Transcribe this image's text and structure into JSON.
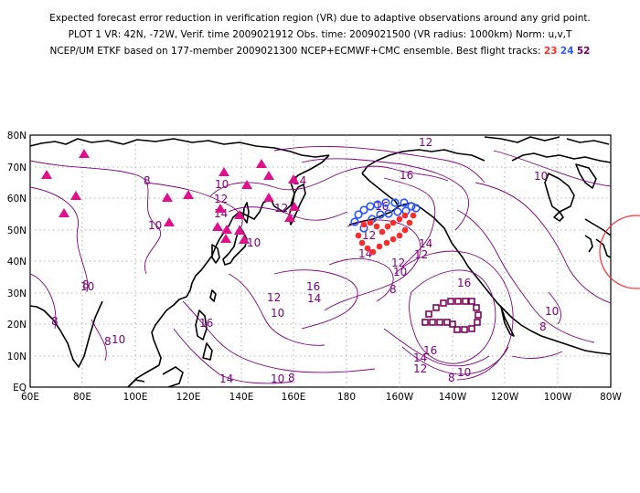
{
  "header": {
    "line1": "Expected forecast error reduction in verification region (VR) due to adaptive observations around any grid point.",
    "line2": "PLOT 1  VR: 42N, -72W,  Verif. time 2009021912  Obs. time: 2009021500  (VR radius: 1000km)  Norm: u,v,T",
    "line3_prefix": "NCEP/UM ETKF based on 177-member 2009021300 NCEP+ECMWF+CMC ensemble.  Best flight tracks:",
    "track_labels": [
      "23",
      "24",
      "52"
    ]
  },
  "axes": {
    "lat_labels": [
      "80N",
      "70N",
      "60N",
      "50N",
      "40N",
      "30N",
      "20N",
      "10N",
      "EQ"
    ],
    "lon_labels": [
      "60E",
      "80E",
      "100E",
      "120E",
      "140E",
      "160E",
      "180",
      "160W",
      "140W",
      "120W",
      "100W",
      "80W"
    ]
  },
  "contour_labels": [
    {
      "text": "12"
    },
    {
      "text": "16"
    },
    {
      "text": "10"
    },
    {
      "text": "8"
    },
    {
      "text": "10"
    },
    {
      "text": "12"
    },
    {
      "text": "14"
    },
    {
      "text": "10"
    },
    {
      "text": "8"
    },
    {
      "text": "10"
    },
    {
      "text": "8"
    },
    {
      "text": "16"
    },
    {
      "text": "12"
    },
    {
      "text": "10"
    },
    {
      "text": "16"
    },
    {
      "text": "14"
    },
    {
      "text": "12"
    },
    {
      "text": "14"
    },
    {
      "text": "12"
    },
    {
      "text": "10"
    },
    {
      "text": "16"
    },
    {
      "text": "8"
    },
    {
      "text": "16"
    },
    {
      "text": "14"
    },
    {
      "text": "12"
    },
    {
      "text": "10"
    },
    {
      "text": "14"
    },
    {
      "text": "10"
    },
    {
      "text": "8"
    },
    {
      "text": "8"
    },
    {
      "text": "10"
    },
    {
      "text": "12"
    },
    {
      "text": "14"
    },
    {
      "text": "8"
    },
    {
      "text": "10"
    },
    {
      "text": "8"
    },
    {
      "text": "16"
    },
    {
      "text": "10"
    },
    {
      "text": "12"
    },
    {
      "text": "14"
    }
  ],
  "colors": {
    "contour": "#800080",
    "raob": "#e0108c",
    "track23": "#ff2a2a",
    "track24": "#2a55ff",
    "track52": "#800060",
    "verif_circle": "#ff3030",
    "coast": "#000000",
    "grid": "#888888"
  },
  "tracks": {
    "track23": {
      "label": "23",
      "symbol": "filled-circle"
    },
    "track24": {
      "label": "24",
      "symbol": "open-circle"
    },
    "track52": {
      "label": "52",
      "symbol": "open-square"
    }
  }
}
